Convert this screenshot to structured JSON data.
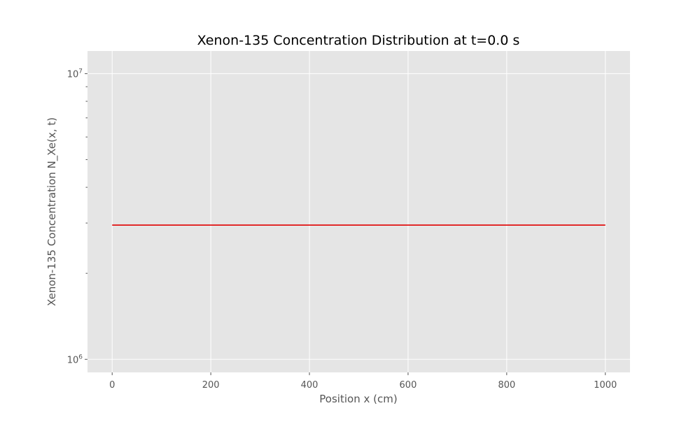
{
  "chart_data": {
    "type": "line",
    "title": "Xenon-135 Concentration Distribution at t=0.0 s",
    "xlabel": "Position x (cm)",
    "ylabel": "Xenon-135 Concentration N_Xe(x, t)",
    "yscale": "log",
    "xlim": [
      -50,
      1050
    ],
    "ylim": [
      900000,
      12000000
    ],
    "x_ticks": [
      0,
      200,
      400,
      600,
      800,
      1000
    ],
    "x_tick_labels": [
      "0",
      "200",
      "400",
      "600",
      "800",
      "1000"
    ],
    "y_major_ticks": [
      {
        "value": 1000000,
        "base": "10",
        "exp": "6"
      },
      {
        "value": 10000000,
        "base": "10",
        "exp": "7"
      }
    ],
    "y_minor_ticks": [
      2000000,
      3000000,
      4000000,
      5000000,
      6000000,
      7000000,
      8000000,
      9000000
    ],
    "grid": true,
    "series": [
      {
        "name": "N_Xe",
        "color": "#e00000",
        "x": [
          0,
          1000
        ],
        "values": [
          2950000,
          2950000
        ]
      }
    ]
  },
  "colors": {
    "axes_bg": "#e5e5e5",
    "grid": "#ffffff",
    "tick_text": "#555555",
    "label_text": "#555555",
    "title_text": "#000000"
  }
}
